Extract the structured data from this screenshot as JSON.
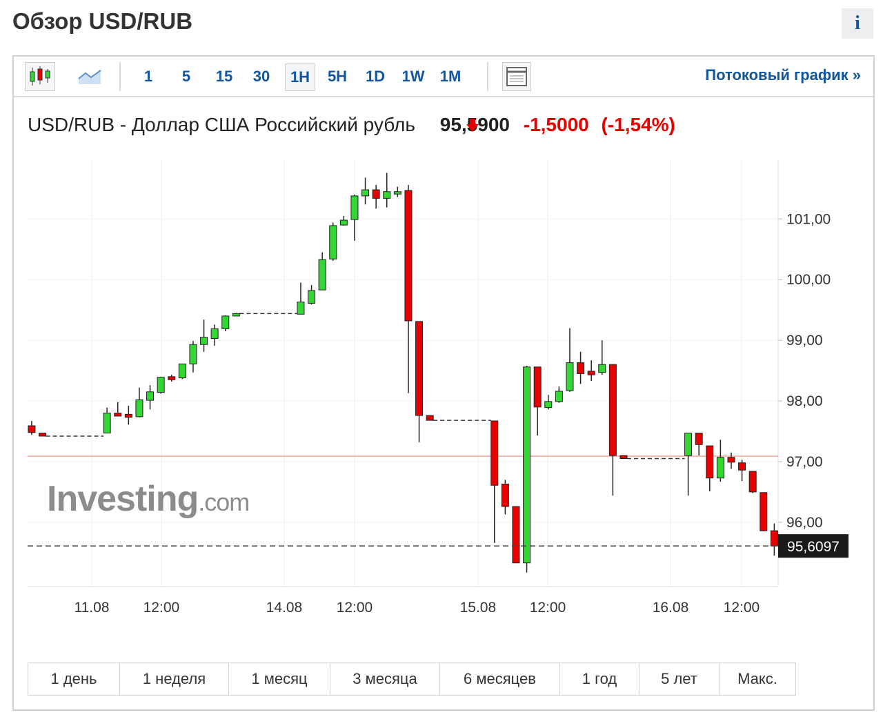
{
  "header": {
    "title": "Обзор USD/RUB",
    "info": "i"
  },
  "toolbar": {
    "intervals": [
      "1",
      "5",
      "15",
      "30",
      "1H",
      "5H",
      "1D",
      "1W",
      "1M"
    ],
    "active": "1H",
    "link": "Потоковый график",
    "link_arrow": "»"
  },
  "instrument": {
    "name": "USD/RUB - Доллар США Российский рубль",
    "price": "95,5900",
    "change": "-1,5000",
    "change_pct": "(-1,54%)"
  },
  "watermark": {
    "brand": "Investing",
    "suffix": ".com"
  },
  "ranges": [
    "1 день",
    "1 неделя",
    "1 месяц",
    "3 месяца",
    "6 месяцев",
    "1 год",
    "5 лет",
    "Макс."
  ],
  "chart_data": {
    "type": "candlestick",
    "x": [
      0,
      1,
      7,
      8,
      9,
      10,
      11,
      12,
      13,
      14,
      15,
      16,
      17,
      18,
      19,
      25,
      26,
      27,
      28,
      29,
      30,
      31,
      32,
      33,
      34,
      35,
      36,
      37,
      43,
      44,
      45,
      46,
      47,
      48,
      49,
      50,
      51,
      52,
      53,
      54,
      55,
      61,
      62,
      63,
      64,
      65,
      66,
      67,
      68,
      69
    ],
    "open": [
      97.59,
      97.47,
      97.47,
      97.8,
      97.78,
      97.74,
      98.01,
      98.14,
      98.4,
      98.38,
      98.61,
      98.93,
      99.03,
      99.19,
      99.4,
      99.43,
      99.61,
      99.83,
      100.34,
      100.9,
      100.99,
      101.38,
      101.48,
      101.34,
      101.41,
      101.47,
      99.31,
      97.76,
      97.67,
      96.63,
      96.26,
      95.33,
      98.56,
      97.89,
      97.99,
      98.17,
      98.63,
      98.49,
      98.47,
      98.6,
      97.1,
      97.1,
      97.47,
      97.26,
      96.73,
      97.07,
      96.98,
      96.84,
      96.49,
      95.86
    ],
    "high": [
      97.67,
      97.47,
      97.89,
      97.98,
      97.92,
      98.22,
      98.26,
      98.4,
      98.43,
      98.61,
      98.99,
      99.34,
      99.26,
      99.41,
      99.45,
      99.95,
      99.91,
      100.45,
      100.94,
      101.05,
      101.4,
      101.68,
      101.56,
      101.76,
      101.53,
      101.56,
      99.31,
      97.76,
      97.67,
      96.7,
      96.26,
      98.58,
      98.56,
      98.1,
      98.24,
      99.2,
      98.81,
      98.67,
      99.0,
      98.6,
      97.1,
      97.47,
      97.47,
      97.26,
      97.36,
      97.15,
      97.03,
      96.84,
      96.49,
      95.98
    ],
    "low": [
      97.44,
      97.42,
      97.47,
      97.75,
      97.61,
      97.73,
      97.86,
      98.12,
      98.32,
      98.36,
      98.47,
      98.81,
      98.91,
      99.15,
      99.4,
      99.43,
      99.59,
      99.83,
      100.31,
      100.89,
      100.64,
      101.24,
      101.17,
      101.19,
      101.36,
      98.13,
      97.32,
      97.68,
      95.66,
      96.13,
      95.33,
      95.17,
      97.43,
      97.86,
      97.97,
      98.15,
      98.28,
      98.33,
      98.43,
      96.44,
      97.05,
      96.44,
      97.1,
      96.51,
      96.67,
      96.88,
      96.68,
      96.48,
      95.85,
      95.45
    ],
    "close": [
      97.48,
      97.42,
      97.8,
      97.75,
      97.73,
      98.02,
      98.15,
      98.39,
      98.35,
      98.61,
      98.93,
      99.05,
      99.19,
      99.4,
      99.44,
      99.63,
      99.82,
      100.33,
      100.89,
      100.98,
      101.38,
      101.48,
      101.34,
      101.45,
      101.45,
      99.32,
      97.76,
      97.68,
      96.61,
      96.26,
      95.33,
      98.56,
      97.9,
      97.99,
      98.16,
      98.63,
      98.45,
      98.43,
      98.6,
      97.1,
      97.05,
      97.47,
      97.28,
      96.73,
      97.07,
      96.99,
      96.86,
      96.5,
      95.86,
      95.61
    ],
    "up_color": "#33d633",
    "down_color": "#e60000",
    "xlim": [
      -0.38,
      69.36
    ],
    "xticks": [
      {
        "value": 5.58,
        "label": "11.08"
      },
      {
        "value": 12.05,
        "label": "12:00"
      },
      {
        "value": 23.46,
        "label": "14.08"
      },
      {
        "value": 30,
        "label": "12:00"
      },
      {
        "value": 41.47,
        "label": "15.08"
      },
      {
        "value": 47.95,
        "label": "12:00"
      },
      {
        "value": 59.36,
        "label": "16.08"
      },
      {
        "value": 65.96,
        "label": "12:00"
      }
    ],
    "ylim": [
      94.94,
      101.97
    ],
    "yticks": [
      {
        "value": 96,
        "label": "96,00"
      },
      {
        "value": 97,
        "label": "97,00"
      },
      {
        "value": 98,
        "label": "98,00"
      },
      {
        "value": 99,
        "label": "99,00"
      },
      {
        "value": 100,
        "label": "100,00"
      },
      {
        "value": 101,
        "label": "101,00"
      }
    ],
    "reference_line": {
      "value": 97.09,
      "color": "#f4a49c"
    },
    "last_price": {
      "value": 95.6097,
      "label": "95,6097"
    },
    "grid": true
  }
}
